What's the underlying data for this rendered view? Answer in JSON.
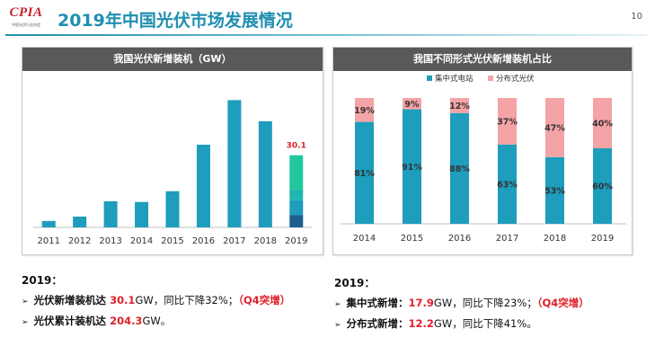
{
  "header": {
    "logo_text": "CPIA",
    "logo_sub": "中国光伏行业协会",
    "title": "2019年中国光伏市场发展情况",
    "page_number": "10",
    "accent_color": "#1f8fb0"
  },
  "left_panel": {
    "summary_year": "2019：",
    "bullet1": {
      "prefix": "光伏新增装机达 ",
      "value": "30.1",
      "unit": "GW，同比下降32%；",
      "note": "（Q4突增）"
    },
    "bullet2": {
      "prefix": "光伏累计装机达 ",
      "value": "204.3",
      "unit": "GW。"
    }
  },
  "right_panel": {
    "summary_year": "2019：",
    "bullet1": {
      "prefix": "集中式新增：",
      "value": "17.9",
      "unit": "GW，同比下降23%；",
      "note": "（Q4突增）"
    },
    "bullet2": {
      "prefix": "分布式新增：",
      "value": "12.2",
      "unit": "GW，同比下降41%。"
    }
  },
  "chart_data": [
    {
      "type": "bar",
      "title": "我国光伏新增装机（GW）",
      "categories": [
        "2011",
        "2012",
        "2013",
        "2014",
        "2015",
        "2016",
        "2017",
        "2018",
        "2019"
      ],
      "values": [
        2.7,
        4.5,
        10.9,
        10.6,
        15.1,
        34.5,
        53.1,
        44.3,
        30.1
      ],
      "highlight_label": "30.1",
      "highlight_index": 8,
      "stacked_2019_quarters": [
        5.2,
        6.1,
        4.5,
        14.3
      ],
      "colors": {
        "bar": "#1e9dbd",
        "q1": "#1f5f8f",
        "q2": "#1e9dbd",
        "q3": "#1fb5b0",
        "q4": "#22c79d",
        "label": "#e0202a"
      },
      "ylim": [
        0,
        60
      ],
      "grid": false
    },
    {
      "type": "bar",
      "stacked": true,
      "percent": true,
      "title": "我国不同形式光伏新增装机占比",
      "categories": [
        "2014",
        "2015",
        "2016",
        "2017",
        "2018",
        "2019"
      ],
      "series": [
        {
          "name": "集中式电站",
          "values": [
            81,
            91,
            88,
            63,
            53,
            60
          ],
          "color": "#1e9dbd"
        },
        {
          "name": "分布式光伏",
          "values": [
            19,
            9,
            12,
            37,
            47,
            40
          ],
          "color": "#f4a3a6"
        }
      ],
      "value_suffix": "%",
      "legend_position": "top",
      "ylim": [
        0,
        100
      ]
    }
  ]
}
